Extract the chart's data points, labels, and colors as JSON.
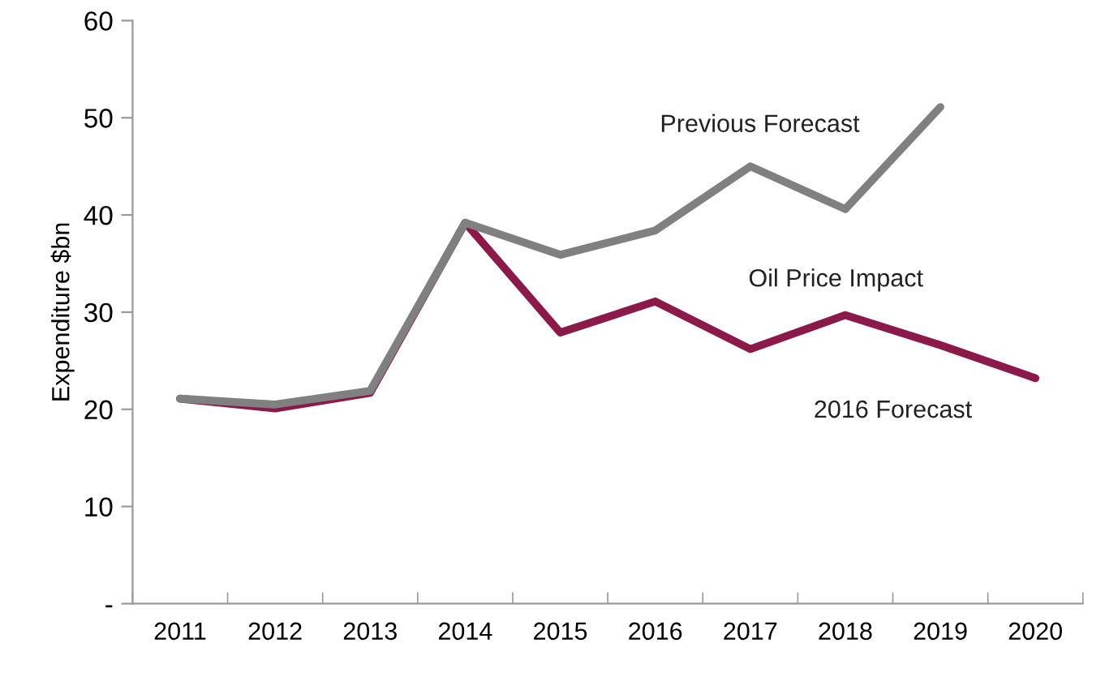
{
  "chart_data": {
    "type": "line",
    "ylabel": "Expenditure $bn",
    "categories": [
      "2011",
      "2012",
      "2013",
      "2014",
      "2015",
      "2016",
      "2017",
      "2018",
      "2019",
      "2020"
    ],
    "series": [
      {
        "name": "2016 Forecast",
        "color": "#8b1a4a",
        "values": [
          21.1,
          20.1,
          21.7,
          39.2,
          27.9,
          31.1,
          26.2,
          29.7,
          26.6,
          23.2
        ]
      },
      {
        "name": "Previous Forecast",
        "color": "#808080",
        "values": [
          21.1,
          20.5,
          21.9,
          39.2,
          35.9,
          38.4,
          45.0,
          40.6,
          51.1,
          null
        ]
      }
    ],
    "annotations": [
      "Oil Price Impact"
    ],
    "ylim": [
      0,
      60
    ],
    "yticks": [
      {
        "value": 0,
        "label": "-"
      },
      10,
      20,
      30,
      40,
      50,
      60
    ],
    "grid": false,
    "legend": false,
    "marker": "none",
    "line_style": "solid"
  }
}
